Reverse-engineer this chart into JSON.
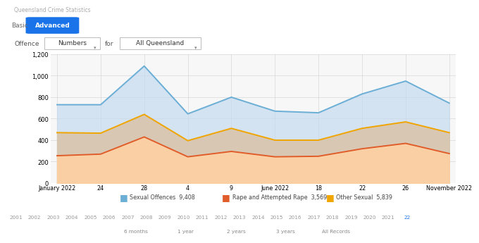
{
  "title_top": "Queensland Crime Statistics",
  "x_labels": [
    "January 2022",
    "24",
    "28",
    "4",
    "9",
    "June 2022",
    "18",
    "22",
    "26",
    "November 2022"
  ],
  "x_positions": [
    0,
    1,
    2,
    3,
    4,
    5,
    6,
    7,
    8,
    9
  ],
  "sexual_offences": [
    730,
    730,
    1090,
    645,
    800,
    670,
    655,
    830,
    950,
    745
  ],
  "rape_attempted": [
    255,
    270,
    430,
    245,
    295,
    245,
    250,
    320,
    370,
    275
  ],
  "other_sexual": [
    470,
    465,
    640,
    395,
    510,
    400,
    400,
    510,
    570,
    470
  ],
  "sexual_offences_total": "9,408",
  "rape_total": "3,569",
  "other_total": "5,839",
  "color_sexual_line": "#6baed6",
  "color_rape_line": "#e05c2a",
  "color_other_line": "#f0a500",
  "color_sexual_fill": "#c6dbef",
  "color_other_fill": "#fdd0a2",
  "color_overlap_fill": "#d9c4a8",
  "ylim": [
    0,
    1200
  ],
  "yticks": [
    0,
    200,
    400,
    600,
    800,
    1000,
    1200
  ],
  "bg_color": "#ffffff",
  "plot_bg": "#f7f7f7",
  "grid_color": "#d0d0d0",
  "legend_label_sexual": "Sexual Offences",
  "legend_label_rape": "Rape and Attempted Rape",
  "legend_label_other": "Other Sexual",
  "bottom_years": [
    "2001",
    "2002",
    "2003",
    "2004",
    "2005",
    "2006",
    "2007",
    "2008",
    "2009",
    "2010",
    "2011",
    "2012",
    "2013",
    "2014",
    "2015",
    "2016",
    "2017",
    "2018",
    "2019",
    "2020",
    "2021",
    "22"
  ],
  "bottom_nav": [
    "6 months",
    "1 year",
    "2 years",
    "3 years",
    "All Records"
  ],
  "blue_btn": "#1a73e8",
  "tab_line_color": "#e0e0e0"
}
